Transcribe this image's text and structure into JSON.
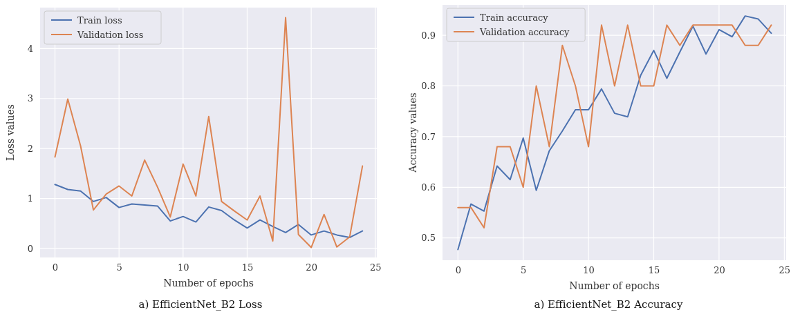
{
  "chart_data": [
    {
      "type": "line",
      "title": "a) EfficientNet_B2 Loss",
      "xlabel": "Number of epochs",
      "ylabel": "Loss values",
      "x": [
        0,
        1,
        2,
        3,
        4,
        5,
        6,
        7,
        8,
        9,
        10,
        11,
        12,
        13,
        14,
        15,
        16,
        17,
        18,
        19,
        20,
        21,
        22,
        23,
        24
      ],
      "series": [
        {
          "name": "Train loss",
          "color": "#4c72b0",
          "values": [
            1.28,
            1.18,
            1.15,
            0.94,
            1.02,
            0.82,
            0.89,
            0.87,
            0.85,
            0.55,
            0.64,
            0.53,
            0.83,
            0.76,
            0.57,
            0.41,
            0.57,
            0.44,
            0.32,
            0.48,
            0.27,
            0.35,
            0.27,
            0.22,
            0.35
          ]
        },
        {
          "name": "Validation loss",
          "color": "#dd8452",
          "values": [
            1.83,
            2.99,
            2.05,
            0.77,
            1.09,
            1.25,
            1.05,
            1.77,
            1.23,
            0.63,
            1.69,
            1.05,
            2.64,
            0.94,
            0.75,
            0.57,
            1.05,
            0.15,
            4.62,
            0.28,
            0.02,
            0.68,
            0.03,
            0.23,
            1.65
          ]
        }
      ],
      "xlim": [
        -1.16,
        25.12
      ],
      "ylim": [
        -0.18,
        4.82
      ],
      "xticks": [
        0,
        5,
        10,
        15,
        20,
        25
      ],
      "yticks": [
        0,
        1,
        2,
        3,
        4
      ],
      "grid": true,
      "legend": "top left",
      "line_style": "solid",
      "marker": "none"
    },
    {
      "type": "line",
      "title": "a) EfficientNet_B2 Accuracy",
      "xlabel": "Number of epochs",
      "ylabel": "Accuracy values",
      "x": [
        0,
        1,
        2,
        3,
        4,
        5,
        6,
        7,
        8,
        9,
        10,
        11,
        12,
        13,
        14,
        15,
        16,
        17,
        18,
        19,
        20,
        21,
        22,
        23,
        24
      ],
      "series": [
        {
          "name": "Train accuracy",
          "color": "#4c72b0",
          "values": [
            0.477,
            0.567,
            0.553,
            0.642,
            0.615,
            0.697,
            0.594,
            0.672,
            0.711,
            0.753,
            0.753,
            0.794,
            0.746,
            0.739,
            0.821,
            0.87,
            0.815,
            0.867,
            0.918,
            0.863,
            0.911,
            0.897,
            0.938,
            0.932,
            0.904
          ]
        },
        {
          "name": "Validation accuracy",
          "color": "#dd8452",
          "values": [
            0.56,
            0.56,
            0.52,
            0.68,
            0.68,
            0.6,
            0.8,
            0.68,
            0.88,
            0.8,
            0.68,
            0.92,
            0.8,
            0.92,
            0.8,
            0.8,
            0.92,
            0.88,
            0.92,
            0.92,
            0.92,
            0.92,
            0.88,
            0.88,
            0.92
          ]
        }
      ],
      "xlim": [
        -1.18,
        25.14
      ],
      "ylim": [
        0.456,
        0.96
      ],
      "xticks": [
        0,
        5,
        10,
        15,
        20,
        25
      ],
      "yticks": [
        {
          "value": 0.5,
          "label": "0.5"
        },
        {
          "value": 0.6,
          "label": "0.6"
        },
        {
          "value": 0.7,
          "label": "0.7"
        },
        {
          "value": 0.8,
          "label": "0.8"
        },
        {
          "value": 0.9,
          "label": "0.9"
        }
      ],
      "grid": true,
      "legend": "top left",
      "line_style": "solid",
      "marker": "none"
    }
  ]
}
